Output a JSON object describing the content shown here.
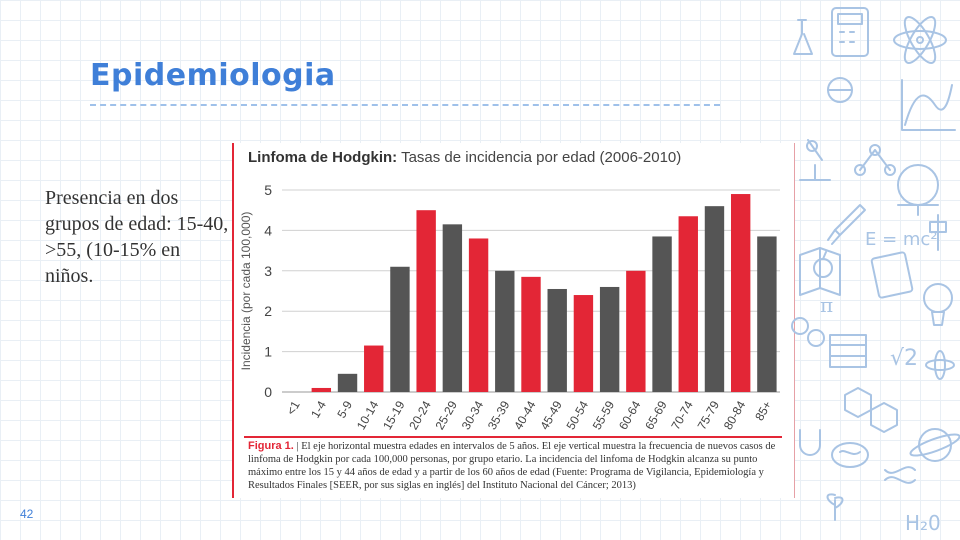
{
  "slide": {
    "title": "Epidemiologia",
    "body_text": "Presencia en dos grupos de edad: 15-40, >55, (10-15% en niños.",
    "page_number": "42"
  },
  "figure": {
    "title_bold": "Linfoma de Hodgkin:",
    "title_rest": "Tasas de incidencia por edad (2006-2010)",
    "caption_label": "Figura 1.",
    "caption_sep": "|",
    "caption_text": "El eje horizontal muestra edades en intervalos de 5 años. El eje vertical muestra la frecuencia de nuevos casos de linfoma de Hodgkin por cada 100,000 personas, por grupo etario. La incidencia del linfoma de Hodgkin alcanza su punto máximo entre los 15 y 44 años de edad y a partir de los 60 años de edad (Fuente: Programa de Vigilancia, Epidemiología y Resultados Finales [SEER, por sus siglas en inglés] del Instituto Nacional del Cáncer; 2013)"
  },
  "decor": {
    "doodle_emc2": "E = mc²",
    "doodle_pi": "π",
    "doodle_sqrt2": "√2",
    "doodle_h2o": "H₂0"
  },
  "chart_data": {
    "type": "bar",
    "title": "Linfoma de Hodgkin: Tasas de incidencia por edad (2006-2010)",
    "xlabel": "",
    "ylabel": "Incidencia (por cada 100,000)",
    "ylim": [
      0,
      5
    ],
    "yticks": [
      0,
      1,
      2,
      3,
      4,
      5
    ],
    "grid": true,
    "categories": [
      "<1",
      "1-4",
      "5-9",
      "10-14",
      "15-19",
      "20-24",
      "25-29",
      "30-34",
      "35-39",
      "40-44",
      "45-49",
      "50-54",
      "55-59",
      "60-64",
      "65-69",
      "70-74",
      "75-79",
      "80-84",
      "85+"
    ],
    "values": [
      0.0,
      0.1,
      0.45,
      1.15,
      3.1,
      4.5,
      4.15,
      3.8,
      3.0,
      2.85,
      2.55,
      2.4,
      2.6,
      3.0,
      3.85,
      4.35,
      4.6,
      4.9,
      3.85
    ],
    "colors": [
      "#555555",
      "#e32636",
      "#555555",
      "#e32636",
      "#555555",
      "#e32636",
      "#555555",
      "#e32636",
      "#555555",
      "#e32636",
      "#555555",
      "#e32636",
      "#555555",
      "#e32636",
      "#555555",
      "#e32636",
      "#555555",
      "#e32636",
      "#555555"
    ]
  },
  "colors": {
    "accent": "#3f7fd8",
    "bar_red": "#e32636",
    "bar_gray": "#555555",
    "doodle": "#a9c4e4"
  }
}
